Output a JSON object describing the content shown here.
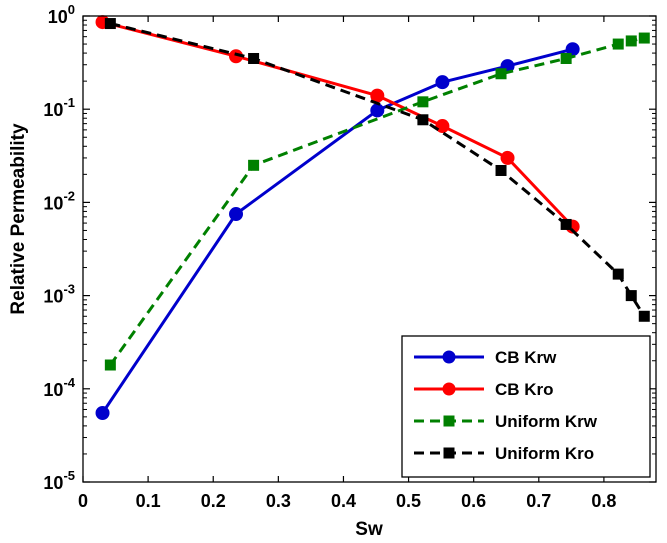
{
  "chart_data": {
    "type": "line",
    "title": "",
    "xlabel": "Sw",
    "ylabel": "Relative Permeability",
    "xlim": [
      0,
      0.88
    ],
    "ylim": [
      1e-05,
      1
    ],
    "yscale": "log",
    "grid": false,
    "legend_position": "bottom-right",
    "x_ticks": [
      {
        "value": 0,
        "label": "0"
      },
      {
        "value": 0.1,
        "label": "0.1"
      },
      {
        "value": 0.2,
        "label": "0.2"
      },
      {
        "value": 0.3,
        "label": "0.3"
      },
      {
        "value": 0.4,
        "label": "0.4"
      },
      {
        "value": 0.5,
        "label": "0.5"
      },
      {
        "value": 0.6,
        "label": "0.6"
      },
      {
        "value": 0.7,
        "label": "0.7"
      },
      {
        "value": 0.8,
        "label": "0.8"
      }
    ],
    "y_ticks": [
      {
        "value": 1,
        "base": "10",
        "exp": "0"
      },
      {
        "value": 0.1,
        "base": "10",
        "exp": "-1"
      },
      {
        "value": 0.01,
        "base": "10",
        "exp": "-2"
      },
      {
        "value": 0.001,
        "base": "10",
        "exp": "-3"
      },
      {
        "value": 0.0001,
        "base": "10",
        "exp": "-4"
      },
      {
        "value": 1e-05,
        "base": "10",
        "exp": "-5"
      }
    ],
    "series": [
      {
        "name": "CB Krw",
        "color": "#0000cc",
        "marker": "circle",
        "line": "solid",
        "x": [
          0.03,
          0.235,
          0.452,
          0.552,
          0.652,
          0.752
        ],
        "y": [
          5.5e-05,
          0.0075,
          0.097,
          0.195,
          0.29,
          0.44
        ]
      },
      {
        "name": "CB Kro",
        "color": "#ff0000",
        "marker": "circle",
        "line": "solid",
        "x": [
          0.03,
          0.235,
          0.452,
          0.552,
          0.652,
          0.752
        ],
        "y": [
          0.86,
          0.37,
          0.14,
          0.066,
          0.03,
          0.0055
        ]
      },
      {
        "name": "Uniform Krw",
        "color": "#008000",
        "marker": "square",
        "line": "dashed",
        "x": [
          0.042,
          0.262,
          0.522,
          0.642,
          0.742,
          0.822,
          0.842,
          0.862
        ],
        "y": [
          0.00018,
          0.025,
          0.12,
          0.24,
          0.35,
          0.5,
          0.54,
          0.58
        ]
      },
      {
        "name": "Uniform Kro",
        "color": "#000000",
        "marker": "square",
        "line": "dashed",
        "x": [
          0.042,
          0.262,
          0.522,
          0.642,
          0.742,
          0.822,
          0.842,
          0.862
        ],
        "y": [
          0.83,
          0.35,
          0.077,
          0.022,
          0.0058,
          0.0017,
          0.001,
          0.0006
        ]
      }
    ]
  }
}
